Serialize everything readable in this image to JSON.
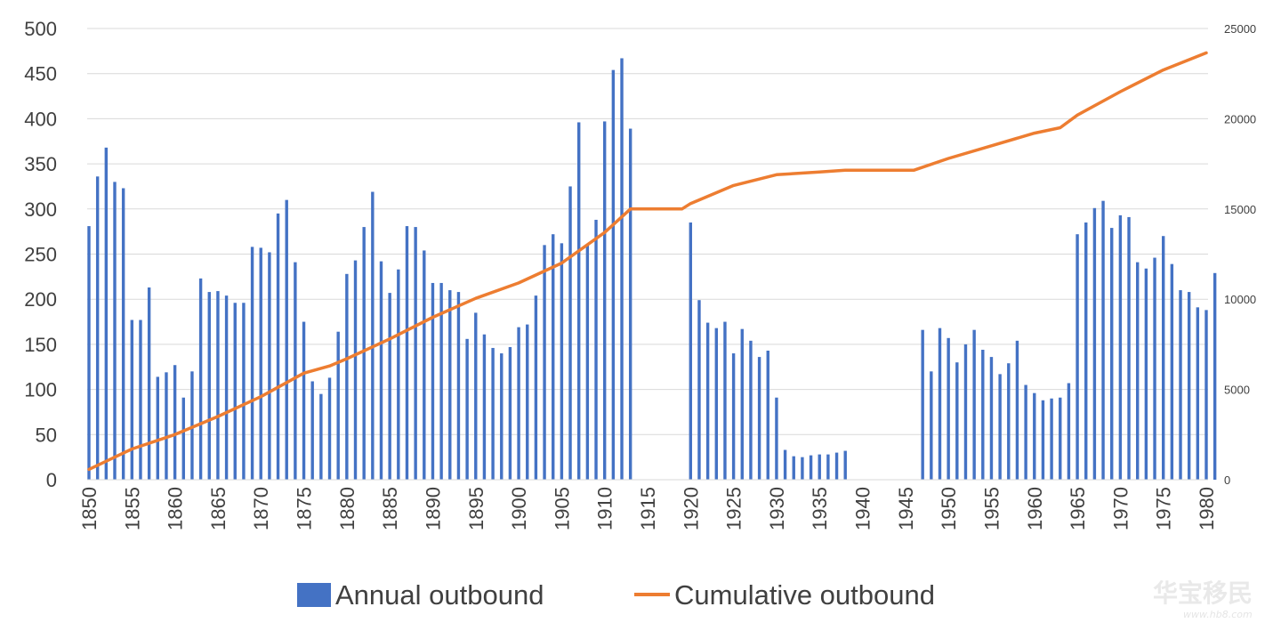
{
  "chart_data": {
    "type": "bar",
    "x_start": 1850,
    "x_end": 1980,
    "y_left_ticks": [
      "0",
      "50",
      "100",
      "150",
      "200",
      "250",
      "300",
      "350",
      "400",
      "450",
      "500"
    ],
    "y_left_range": [
      0,
      500
    ],
    "y_right_ticks": [
      "0",
      "5000",
      "10000",
      "15000",
      "20000",
      "25000"
    ],
    "y_right_range": [
      0,
      25000
    ],
    "x_tick_labels": [
      "1850",
      "1855",
      "1860",
      "1865",
      "1870",
      "1875",
      "1880",
      "1885",
      "1890",
      "1895",
      "1900",
      "1905",
      "1910",
      "1915",
      "1920",
      "1925",
      "1930",
      "1935",
      "1940",
      "1945",
      "1950",
      "1955",
      "1960",
      "1965",
      "1970",
      "1975",
      "1980"
    ],
    "grid": "horizontal",
    "legend_position": "bottom",
    "series": [
      {
        "name": "Annual outbound",
        "type": "bar",
        "axis": "left",
        "color": "#4472c4",
        "values": [
          281,
          336,
          368,
          330,
          323,
          177,
          177,
          213,
          114,
          119,
          127,
          91,
          120,
          223,
          208,
          209,
          204,
          196,
          196,
          258,
          257,
          252,
          295,
          310,
          241,
          175,
          109,
          95,
          113,
          164,
          228,
          243,
          280,
          319,
          242,
          207,
          233,
          281,
          280,
          254,
          218,
          218,
          210,
          208,
          156,
          185,
          161,
          146,
          140,
          147,
          169,
          172,
          204,
          260,
          272,
          262,
          325,
          396,
          261,
          288,
          397,
          454,
          467,
          389,
          0,
          0,
          0,
          0,
          0,
          0,
          285,
          199,
          174,
          168,
          175,
          140,
          167,
          154,
          136,
          143,
          91,
          33,
          26,
          25,
          27,
          28,
          28,
          30,
          32,
          0,
          0,
          0,
          0,
          0,
          0,
          0,
          0,
          166,
          120,
          168,
          157,
          130,
          150,
          166,
          144,
          136,
          117,
          129,
          154,
          105,
          96,
          88,
          90,
          91,
          107,
          272,
          285,
          301,
          309,
          279,
          293,
          291,
          241,
          234,
          246,
          270,
          239,
          210,
          208,
          191,
          188,
          229
        ]
      },
      {
        "name": "Cumulative outbound",
        "type": "line",
        "axis": "right",
        "color": "#ed7d31",
        "points": [
          [
            1850,
            570
          ],
          [
            1855,
            1700
          ],
          [
            1860,
            2500
          ],
          [
            1865,
            3500
          ],
          [
            1870,
            4600
          ],
          [
            1875,
            5900
          ],
          [
            1878,
            6300
          ],
          [
            1880,
            6700
          ],
          [
            1885,
            7800
          ],
          [
            1890,
            9000
          ],
          [
            1895,
            10050
          ],
          [
            1900,
            10900
          ],
          [
            1905,
            12000
          ],
          [
            1910,
            13700
          ],
          [
            1913,
            15000
          ],
          [
            1919,
            15000
          ],
          [
            1920,
            15300
          ],
          [
            1925,
            16300
          ],
          [
            1930,
            16900
          ],
          [
            1935,
            17050
          ],
          [
            1938,
            17150
          ],
          [
            1946,
            17150
          ],
          [
            1950,
            17800
          ],
          [
            1955,
            18500
          ],
          [
            1960,
            19200
          ],
          [
            1963,
            19500
          ],
          [
            1965,
            20200
          ],
          [
            1970,
            21500
          ],
          [
            1975,
            22700
          ],
          [
            1980,
            23650
          ]
        ]
      }
    ]
  },
  "legend": [
    {
      "label": "Annual outbound",
      "color": "#4472c4",
      "kind": "bar"
    },
    {
      "label": "Cumulative outbound",
      "color": "#ed7d31",
      "kind": "line"
    }
  ],
  "watermark": {
    "text": "华宝移民",
    "url": "www.hb8.com"
  }
}
